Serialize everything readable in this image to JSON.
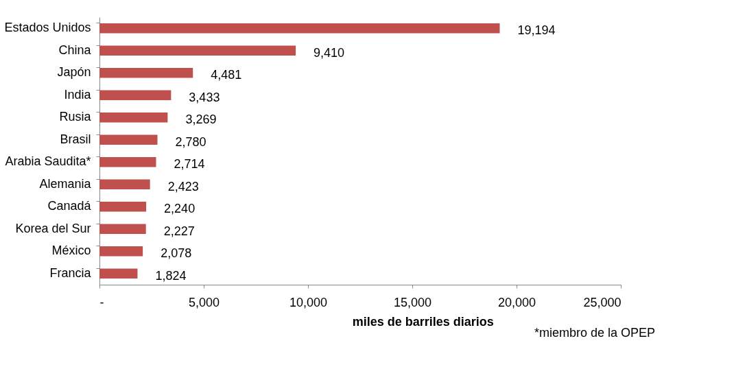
{
  "chart_data": {
    "type": "bar",
    "orientation": "horizontal",
    "categories": [
      "Estados Unidos",
      "China",
      "Japón",
      "India",
      "Rusia",
      "Brasil",
      "Arabia Saudita*",
      "Alemania",
      "Canadá",
      "Korea del Sur",
      "México",
      "Francia"
    ],
    "values": [
      19194,
      9410,
      4481,
      3433,
      3269,
      2780,
      2714,
      2423,
      2240,
      2227,
      2078,
      1824
    ],
    "value_labels": [
      "19,194",
      "9,410",
      "4,481",
      "3,433",
      "3,269",
      "2,780",
      "2,714",
      "2,423",
      "2,240",
      "2,227",
      "2,078",
      "1,824"
    ],
    "color": "#c0504d",
    "xlim": [
      0,
      25000
    ],
    "xticks": [
      {
        "value": 0,
        "label": "-"
      },
      {
        "value": 5000,
        "label": "5,000"
      },
      {
        "value": 10000,
        "label": "10,000"
      },
      {
        "value": 15000,
        "label": "15,000"
      },
      {
        "value": 20000,
        "label": "20,000"
      },
      {
        "value": 25000,
        "label": "25,000"
      }
    ],
    "xlabel": "miles de barriles diarios",
    "annotations": [
      "*miembro de la OPEP"
    ],
    "grid": false
  }
}
